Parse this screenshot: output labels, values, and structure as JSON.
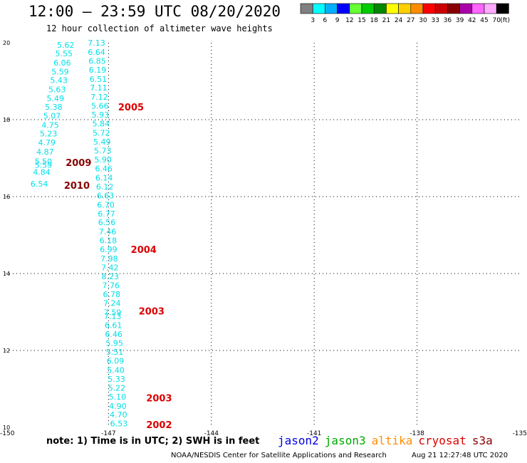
{
  "header": {
    "title": "12:00 – 23:59 UTC 08/20/2020",
    "subtitle": "12 hour collection of altimeter wave heights"
  },
  "colorbar": {
    "unit": "(ft)",
    "labels": [
      "3",
      "6",
      "9",
      "12",
      "15",
      "18",
      "21",
      "24",
      "27",
      "30",
      "33",
      "36",
      "39",
      "42",
      "45",
      "70"
    ],
    "colors": [
      "#808080",
      "#00ffff",
      "#00b0ff",
      "#0000ff",
      "#66ff33",
      "#00cc00",
      "#008800",
      "#ffff00",
      "#ffd000",
      "#ff8c00",
      "#ff0000",
      "#cc0000",
      "#880000",
      "#aa00aa",
      "#ff66ff",
      "#ffaaff",
      "#000000"
    ]
  },
  "map": {
    "lon_ticks": [
      "-150",
      "-147",
      "-144",
      "-141",
      "-138",
      "-135"
    ],
    "lat_ticks": [
      "10",
      "12",
      "14",
      "16",
      "18",
      "20"
    ],
    "lon_range": [
      -150,
      -135
    ],
    "lat_range": [
      10,
      20
    ],
    "grid": "dotted"
  },
  "observations": {
    "color": "#00e0e8",
    "points": [
      {
        "v": "5.62",
        "lon": -148.25,
        "lat": 19.94
      },
      {
        "v": "5.55",
        "lon": -148.3,
        "lat": 19.72
      },
      {
        "v": "6.06",
        "lon": -148.35,
        "lat": 19.48
      },
      {
        "v": "5.59",
        "lon": -148.41,
        "lat": 19.25
      },
      {
        "v": "5.43",
        "lon": -148.45,
        "lat": 19.03
      },
      {
        "v": "5.63",
        "lon": -148.5,
        "lat": 18.79
      },
      {
        "v": "5.49",
        "lon": -148.55,
        "lat": 18.56
      },
      {
        "v": "5.38",
        "lon": -148.6,
        "lat": 18.33
      },
      {
        "v": "5.07",
        "lon": -148.65,
        "lat": 18.1
      },
      {
        "v": "4.75",
        "lon": -148.7,
        "lat": 17.86
      },
      {
        "v": "5.23",
        "lon": -148.75,
        "lat": 17.64
      },
      {
        "v": "4.79",
        "lon": -148.8,
        "lat": 17.41
      },
      {
        "v": "4.87",
        "lon": -148.85,
        "lat": 17.17
      },
      {
        "v": "5.50",
        "lon": -148.9,
        "lat": 16.92
      },
      {
        "v": "5.59",
        "lon": -148.9,
        "lat": 16.82
      },
      {
        "v": "4.84",
        "lon": -148.95,
        "lat": 16.64
      },
      {
        "v": "6.54",
        "lon": -149.02,
        "lat": 16.33
      },
      {
        "v": "7.13",
        "lon": -147.35,
        "lat": 20.0
      },
      {
        "v": "6.64",
        "lon": -147.35,
        "lat": 19.76
      },
      {
        "v": "6.85",
        "lon": -147.33,
        "lat": 19.53
      },
      {
        "v": "6.19",
        "lon": -147.32,
        "lat": 19.3
      },
      {
        "v": "6.51",
        "lon": -147.3,
        "lat": 19.06
      },
      {
        "v": "7.11",
        "lon": -147.29,
        "lat": 18.83
      },
      {
        "v": "7.12",
        "lon": -147.27,
        "lat": 18.59
      },
      {
        "v": "5.66",
        "lon": -147.25,
        "lat": 18.36
      },
      {
        "v": "5.93",
        "lon": -147.24,
        "lat": 18.13
      },
      {
        "v": "5.84",
        "lon": -147.22,
        "lat": 17.9
      },
      {
        "v": "5.72",
        "lon": -147.21,
        "lat": 17.66
      },
      {
        "v": "5.49",
        "lon": -147.19,
        "lat": 17.43
      },
      {
        "v": "5.73",
        "lon": -147.17,
        "lat": 17.19
      },
      {
        "v": "5.90",
        "lon": -147.16,
        "lat": 16.96
      },
      {
        "v": "6.46",
        "lon": -147.14,
        "lat": 16.73
      },
      {
        "v": "6.14",
        "lon": -147.13,
        "lat": 16.49
      },
      {
        "v": "6.12",
        "lon": -147.11,
        "lat": 16.26
      },
      {
        "v": "6.63",
        "lon": -147.09,
        "lat": 16.03
      },
      {
        "v": "6.70",
        "lon": -147.08,
        "lat": 15.79
      },
      {
        "v": "6.77",
        "lon": -147.06,
        "lat": 15.56
      },
      {
        "v": "6.56",
        "lon": -147.05,
        "lat": 15.33
      },
      {
        "v": "7.46",
        "lon": -147.03,
        "lat": 15.09
      },
      {
        "v": "6.18",
        "lon": -147.01,
        "lat": 14.86
      },
      {
        "v": "6.99",
        "lon": -147.0,
        "lat": 14.63
      },
      {
        "v": "7.98",
        "lon": -146.98,
        "lat": 14.39
      },
      {
        "v": "7.42",
        "lon": -146.96,
        "lat": 14.16
      },
      {
        "v": "8.23",
        "lon": -146.95,
        "lat": 13.93
      },
      {
        "v": "7.76",
        "lon": -146.93,
        "lat": 13.69
      },
      {
        "v": "6.78",
        "lon": -146.91,
        "lat": 13.46
      },
      {
        "v": "7.24",
        "lon": -146.9,
        "lat": 13.23
      },
      {
        "v": "7.59",
        "lon": -146.88,
        "lat": 12.99
      },
      {
        "v": "7.13",
        "lon": -146.88,
        "lat": 12.89
      },
      {
        "v": "6.61",
        "lon": -146.86,
        "lat": 12.66
      },
      {
        "v": "6.46",
        "lon": -146.85,
        "lat": 12.43
      },
      {
        "v": "5.95",
        "lon": -146.83,
        "lat": 12.19
      },
      {
        "v": "5.51",
        "lon": -146.82,
        "lat": 11.96
      },
      {
        "v": "6.09",
        "lon": -146.8,
        "lat": 11.73
      },
      {
        "v": "5.40",
        "lon": -146.79,
        "lat": 11.49
      },
      {
        "v": "5.33",
        "lon": -146.77,
        "lat": 11.26
      },
      {
        "v": "5.22",
        "lon": -146.76,
        "lat": 11.03
      },
      {
        "v": "5.10",
        "lon": -146.74,
        "lat": 10.8
      },
      {
        "v": "4.90",
        "lon": -146.73,
        "lat": 10.56
      },
      {
        "v": "4.70",
        "lon": -146.71,
        "lat": 10.33
      },
      {
        "v": "6.53",
        "lon": -146.7,
        "lat": 10.1
      }
    ]
  },
  "pass_labels": [
    {
      "text": "2005",
      "lon": -146.72,
      "lat": 18.33,
      "color": "#dd0000"
    },
    {
      "text": "2009",
      "lon": -148.25,
      "lat": 16.89,
      "color": "#880000"
    },
    {
      "text": "2010",
      "lon": -148.3,
      "lat": 16.3,
      "color": "#880000"
    },
    {
      "text": "2004",
      "lon": -146.35,
      "lat": 14.63,
      "color": "#dd0000"
    },
    {
      "text": "2003",
      "lon": -146.12,
      "lat": 13.03,
      "color": "#dd0000"
    },
    {
      "text": "2003",
      "lon": -145.9,
      "lat": 10.77,
      "color": "#dd0000"
    },
    {
      "text": "2002",
      "lon": -145.9,
      "lat": 10.07,
      "color": "#dd0000"
    }
  ],
  "satellites": [
    {
      "name": "jason2",
      "color": "#0000dd"
    },
    {
      "name": "jason3",
      "color": "#00aa00"
    },
    {
      "name": "altika",
      "color": "#ff8c00"
    },
    {
      "name": "cryosat",
      "color": "#dd0000"
    },
    {
      "name": "s3a",
      "color": "#880000"
    }
  ],
  "footer": {
    "note": "note:  1) Time is in UTC;  2) SWH is in feet",
    "credit": "NOAA/NESDIS Center for Satellite Applications and Research",
    "timestamp": "Aug 21 12:27:48 UTC 2020"
  }
}
